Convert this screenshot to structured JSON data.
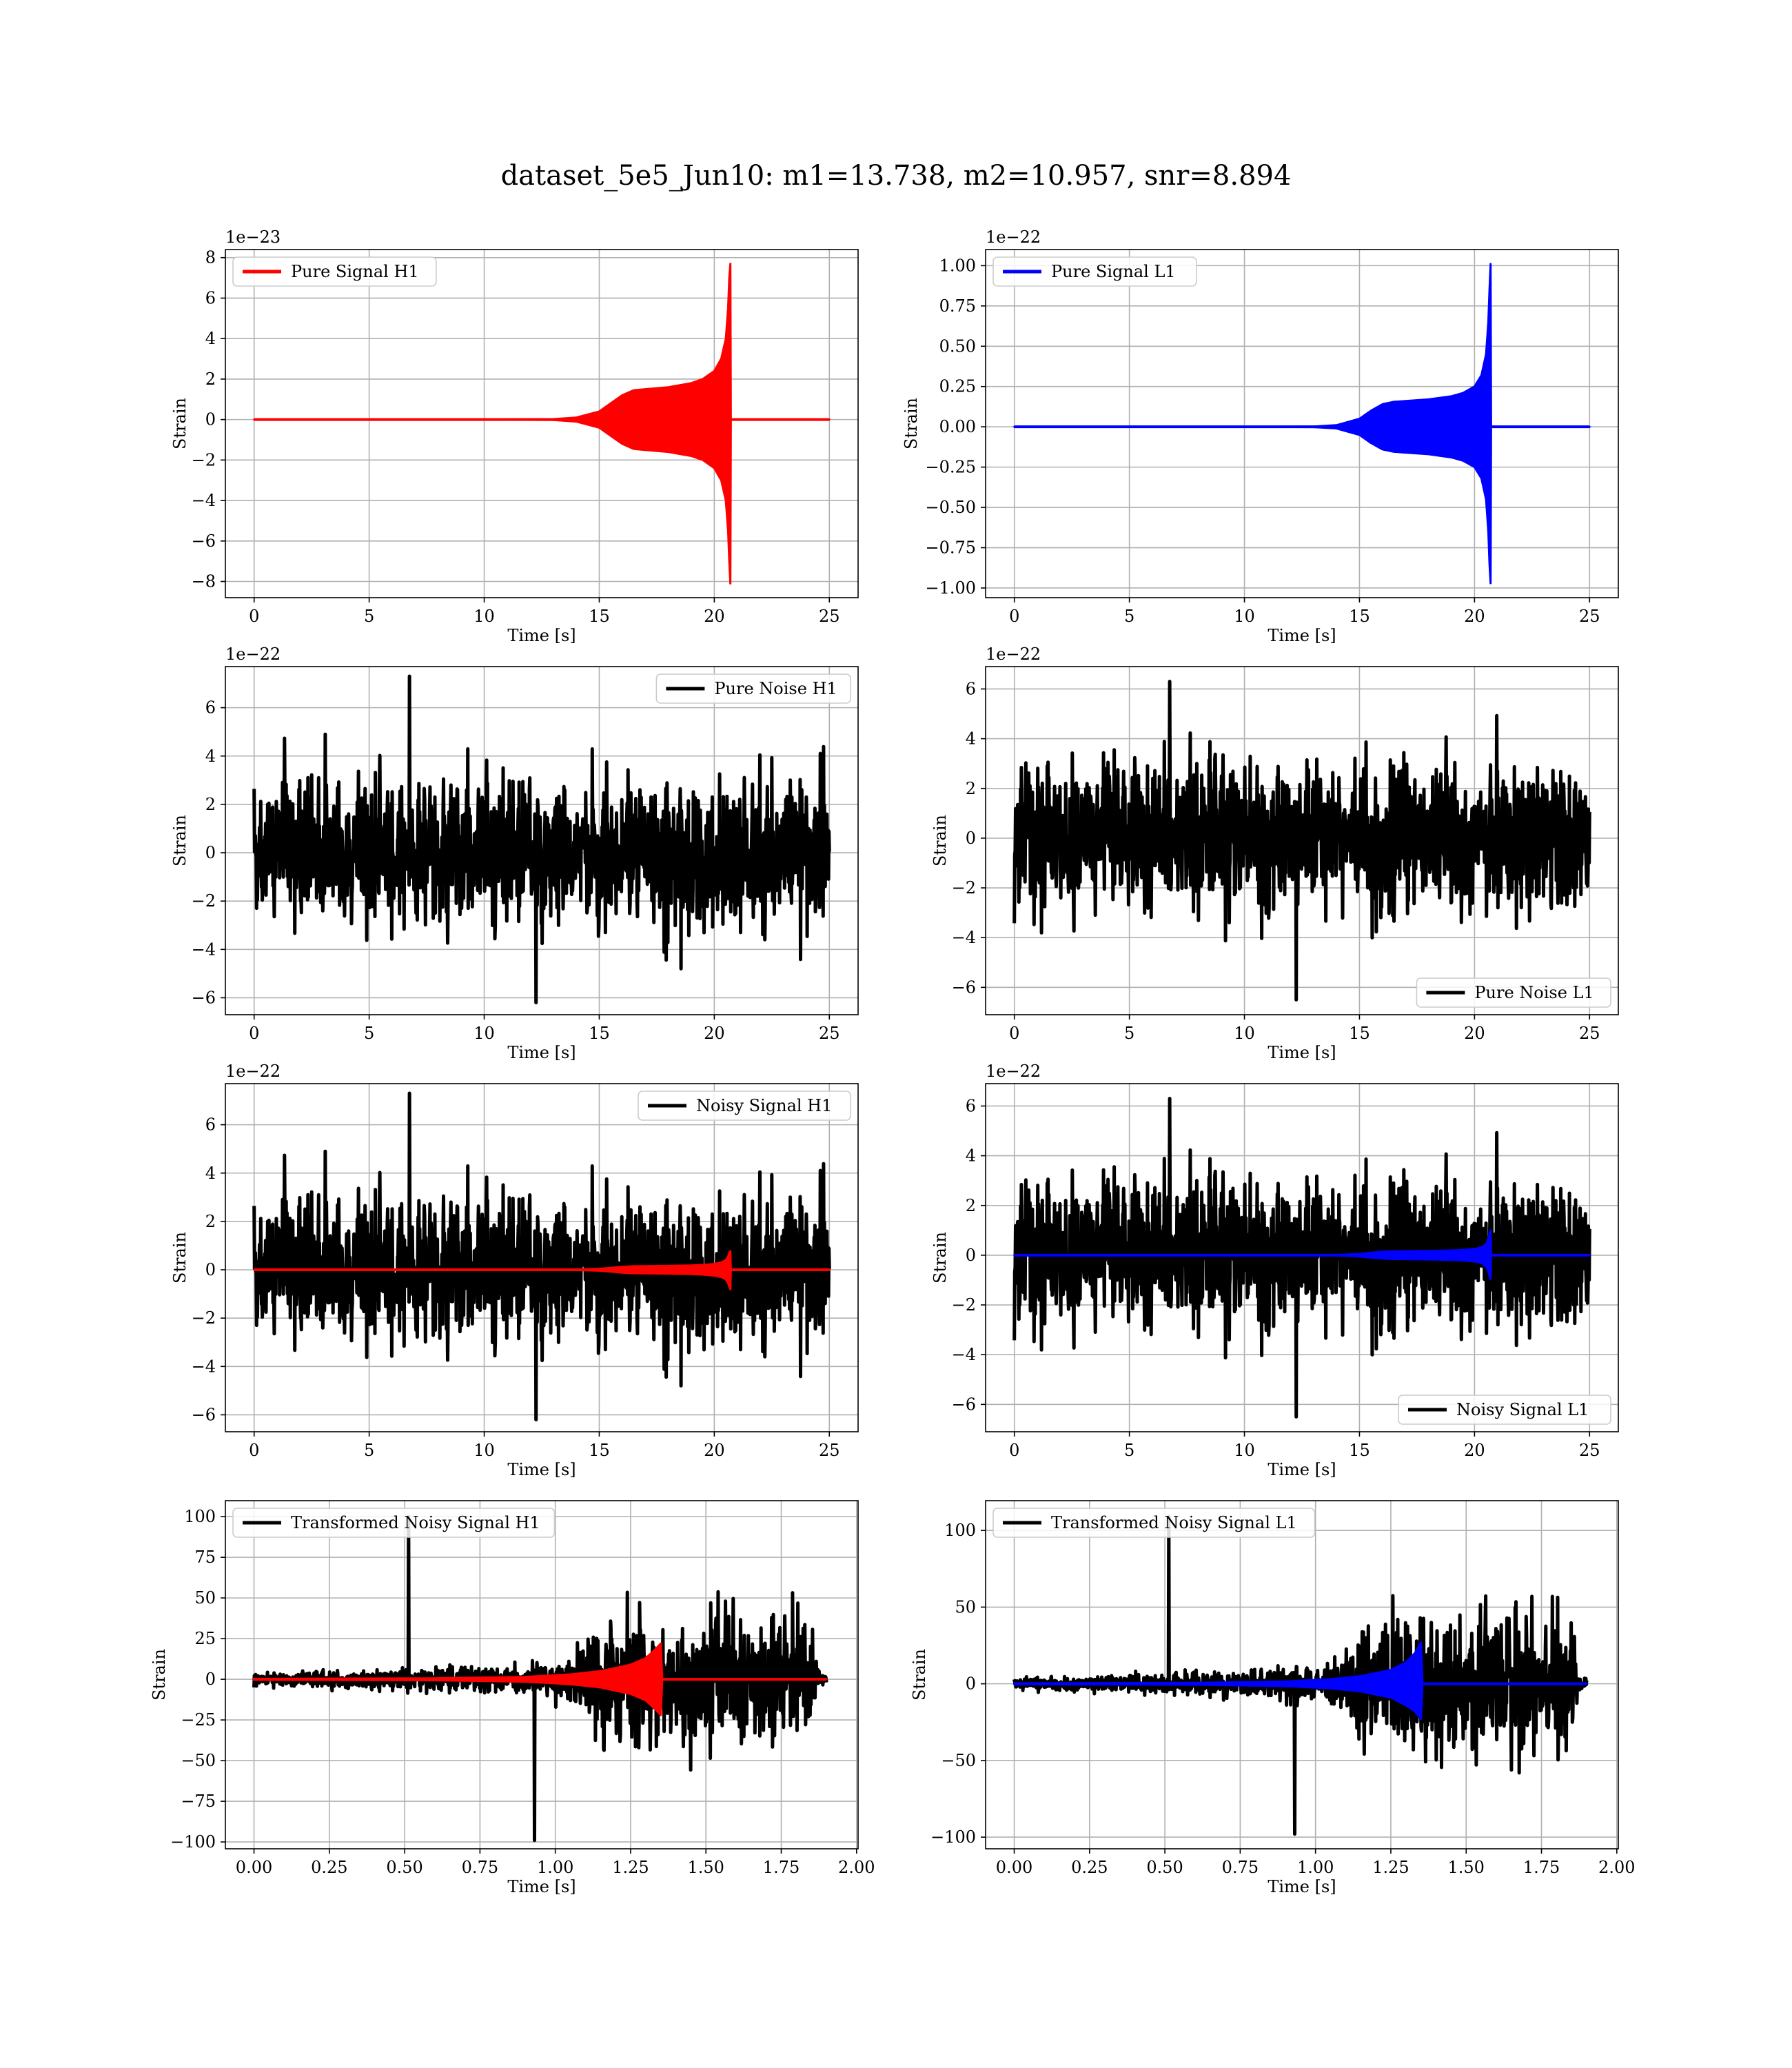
{
  "figure": {
    "suptitle": "dataset_5e5_Jun10: m1=13.738, m2=10.957, snr=8.894"
  },
  "colors": {
    "h1_signal": "#ff0000",
    "l1_signal": "#0000ff",
    "noise": "#000000",
    "grid": "#b0b0b0",
    "background": "#ffffff"
  },
  "chart_data": [
    {
      "id": "pure-signal-h1",
      "type": "line",
      "xlabel": "Time [s]",
      "ylabel": "Strain",
      "offset_text": "1e−23",
      "xlim": [
        -1.25,
        26.25
      ],
      "ylim": [
        -8.8,
        8.4
      ],
      "xticks": [
        0,
        5,
        10,
        15,
        20,
        25
      ],
      "xtick_labels": [
        "0",
        "5",
        "10",
        "15",
        "20",
        "25"
      ],
      "yticks": [
        -8,
        -6,
        -4,
        -2,
        0,
        2,
        4,
        6,
        8
      ],
      "ytick_labels": [
        "−8",
        "−6",
        "−4",
        "−2",
        "0",
        "2",
        "4",
        "6",
        "8"
      ],
      "grid": true,
      "legend_position": "upper left",
      "series": [
        {
          "name": "Pure Signal H1",
          "kind": "envelope",
          "color": "#ff0000",
          "x": [
            0,
            10,
            13,
            14,
            15,
            15.5,
            16,
            16.5,
            17,
            18,
            19,
            19.5,
            20,
            20.3,
            20.5,
            20.6,
            20.65,
            20.7,
            20.72,
            21,
            25
          ],
          "upper": [
            0,
            0,
            0.02,
            0.1,
            0.4,
            0.8,
            1.2,
            1.45,
            1.5,
            1.6,
            1.8,
            2.0,
            2.4,
            3.0,
            4.0,
            5.5,
            7.0,
            7.7,
            0,
            0,
            0
          ],
          "lower": [
            0,
            0,
            -0.02,
            -0.1,
            -0.4,
            -0.8,
            -1.2,
            -1.45,
            -1.5,
            -1.6,
            -1.8,
            -2.0,
            -2.4,
            -3.0,
            -4.0,
            -5.5,
            -7.0,
            -8.1,
            0,
            0,
            0
          ]
        }
      ]
    },
    {
      "id": "pure-signal-l1",
      "type": "line",
      "xlabel": "Time [s]",
      "ylabel": "Strain",
      "offset_text": "1e−22",
      "xlim": [
        -1.25,
        26.25
      ],
      "ylim": [
        -1.06,
        1.1
      ],
      "xticks": [
        0,
        5,
        10,
        15,
        20,
        25
      ],
      "xtick_labels": [
        "0",
        "5",
        "10",
        "15",
        "20",
        "25"
      ],
      "yticks": [
        -1.0,
        -0.75,
        -0.5,
        -0.25,
        0.0,
        0.25,
        0.5,
        0.75,
        1.0
      ],
      "ytick_labels": [
        "−1.00",
        "−0.75",
        "−0.50",
        "−0.25",
        "0.00",
        "0.25",
        "0.50",
        "0.75",
        "1.00"
      ],
      "grid": true,
      "legend_position": "upper left",
      "series": [
        {
          "name": "Pure Signal L1",
          "kind": "envelope",
          "color": "#0000ff",
          "x": [
            0,
            10,
            13,
            14,
            15,
            15.5,
            16,
            16.5,
            17,
            18,
            19,
            19.5,
            20,
            20.3,
            20.5,
            20.6,
            20.65,
            20.7,
            20.72,
            21,
            25
          ],
          "upper": [
            0,
            0,
            0.002,
            0.01,
            0.05,
            0.1,
            0.14,
            0.155,
            0.16,
            0.17,
            0.19,
            0.21,
            0.25,
            0.32,
            0.45,
            0.65,
            0.85,
            1.01,
            0,
            0,
            0
          ],
          "lower": [
            0,
            0,
            -0.002,
            -0.01,
            -0.05,
            -0.1,
            -0.14,
            -0.155,
            -0.16,
            -0.17,
            -0.19,
            -0.21,
            -0.25,
            -0.32,
            -0.45,
            -0.65,
            -0.85,
            -0.97,
            0,
            0,
            0
          ]
        }
      ]
    },
    {
      "id": "pure-noise-h1",
      "type": "line",
      "xlabel": "Time [s]",
      "ylabel": "Strain",
      "offset_text": "1e−22",
      "xlim": [
        -1.25,
        26.25
      ],
      "ylim": [
        -6.7,
        7.7
      ],
      "xticks": [
        0,
        5,
        10,
        15,
        20,
        25
      ],
      "xtick_labels": [
        "0",
        "5",
        "10",
        "15",
        "20",
        "25"
      ],
      "yticks": [
        -6,
        -4,
        -2,
        0,
        2,
        4,
        6
      ],
      "ytick_labels": [
        "−6",
        "−4",
        "−2",
        "0",
        "2",
        "4",
        "6"
      ],
      "grid": true,
      "legend_position": "upper right",
      "series": [
        {
          "name": "Pure Noise H1",
          "kind": "noise",
          "color": "#000000",
          "x_range": [
            0,
            25
          ],
          "std": 1.4,
          "max": 7.3,
          "min": -6.2,
          "seed": 11
        }
      ]
    },
    {
      "id": "pure-noise-l1",
      "type": "line",
      "xlabel": "Time [s]",
      "ylabel": "Strain",
      "offset_text": "1e−22",
      "xlim": [
        -1.25,
        26.25
      ],
      "ylim": [
        -7.1,
        6.9
      ],
      "xticks": [
        0,
        5,
        10,
        15,
        20,
        25
      ],
      "xtick_labels": [
        "0",
        "5",
        "10",
        "15",
        "20",
        "25"
      ],
      "yticks": [
        -6,
        -4,
        -2,
        0,
        2,
        4,
        6
      ],
      "ytick_labels": [
        "−6",
        "−4",
        "−2",
        "0",
        "2",
        "4",
        "6"
      ],
      "grid": true,
      "legend_position": "lower right",
      "series": [
        {
          "name": "Pure Noise L1",
          "kind": "noise",
          "color": "#000000",
          "x_range": [
            0,
            25
          ],
          "std": 1.4,
          "max": 6.3,
          "min": -6.5,
          "seed": 23
        }
      ]
    },
    {
      "id": "noisy-signal-h1",
      "type": "line",
      "xlabel": "Time [s]",
      "ylabel": "Strain",
      "offset_text": "1e−22",
      "xlim": [
        -1.25,
        26.25
      ],
      "ylim": [
        -6.7,
        7.7
      ],
      "xticks": [
        0,
        5,
        10,
        15,
        20,
        25
      ],
      "xtick_labels": [
        "0",
        "5",
        "10",
        "15",
        "20",
        "25"
      ],
      "yticks": [
        -6,
        -4,
        -2,
        0,
        2,
        4,
        6
      ],
      "ytick_labels": [
        "−6",
        "−4",
        "−2",
        "0",
        "2",
        "4",
        "6"
      ],
      "grid": true,
      "legend_position": "upper right",
      "series": [
        {
          "name": "Noisy Signal H1",
          "kind": "noise",
          "color": "#000000",
          "x_range": [
            0,
            25
          ],
          "std": 1.4,
          "max": 7.3,
          "min": -6.2,
          "seed": 11
        },
        {
          "kind": "envelope",
          "color": "#ff0000",
          "x": [
            0,
            10,
            13,
            14,
            15,
            15.5,
            16,
            16.5,
            17,
            18,
            19,
            19.5,
            20,
            20.3,
            20.5,
            20.6,
            20.65,
            20.7,
            20.72,
            21,
            25
          ],
          "upper": [
            0,
            0,
            0.002,
            0.01,
            0.04,
            0.08,
            0.12,
            0.145,
            0.15,
            0.16,
            0.18,
            0.2,
            0.24,
            0.3,
            0.4,
            0.55,
            0.7,
            0.77,
            0,
            0,
            0
          ],
          "lower": [
            0,
            0,
            -0.002,
            -0.01,
            -0.04,
            -0.08,
            -0.12,
            -0.145,
            -0.15,
            -0.16,
            -0.18,
            -0.2,
            -0.24,
            -0.3,
            -0.4,
            -0.55,
            -0.7,
            -0.81,
            0,
            0,
            0
          ]
        }
      ]
    },
    {
      "id": "noisy-signal-l1",
      "type": "line",
      "xlabel": "Time [s]",
      "ylabel": "Strain",
      "offset_text": "1e−22",
      "xlim": [
        -1.25,
        26.25
      ],
      "ylim": [
        -7.1,
        6.9
      ],
      "xticks": [
        0,
        5,
        10,
        15,
        20,
        25
      ],
      "xtick_labels": [
        "0",
        "5",
        "10",
        "15",
        "20",
        "25"
      ],
      "yticks": [
        -6,
        -4,
        -2,
        0,
        2,
        4,
        6
      ],
      "ytick_labels": [
        "−6",
        "−4",
        "−2",
        "0",
        "2",
        "4",
        "6"
      ],
      "grid": true,
      "legend_position": "lower right",
      "series": [
        {
          "name": "Noisy Signal L1",
          "kind": "noise",
          "color": "#000000",
          "x_range": [
            0,
            25
          ],
          "std": 1.4,
          "max": 6.3,
          "min": -6.5,
          "seed": 23
        },
        {
          "kind": "envelope",
          "color": "#0000ff",
          "x": [
            0,
            10,
            13,
            14,
            15,
            15.5,
            16,
            16.5,
            17,
            18,
            19,
            19.5,
            20,
            20.3,
            20.5,
            20.6,
            20.65,
            20.7,
            20.72,
            21,
            25
          ],
          "upper": [
            0,
            0,
            0.002,
            0.01,
            0.05,
            0.1,
            0.14,
            0.155,
            0.16,
            0.17,
            0.19,
            0.21,
            0.25,
            0.32,
            0.45,
            0.65,
            0.85,
            1.01,
            0,
            0,
            0
          ],
          "lower": [
            0,
            0,
            -0.002,
            -0.01,
            -0.05,
            -0.1,
            -0.14,
            -0.155,
            -0.16,
            -0.17,
            -0.19,
            -0.21,
            -0.25,
            -0.32,
            -0.45,
            -0.65,
            -0.85,
            -0.97,
            0,
            0,
            0
          ]
        }
      ]
    },
    {
      "id": "transformed-noisy-signal-h1",
      "type": "line",
      "xlabel": "Time [s]",
      "ylabel": "Strain",
      "offset_text": "",
      "xlim": [
        -0.095,
        2.005
      ],
      "ylim": [
        -104.2,
        109.8
      ],
      "xticks": [
        0.0,
        0.25,
        0.5,
        0.75,
        1.0,
        1.25,
        1.5,
        1.75,
        2.0
      ],
      "xtick_labels": [
        "0.00",
        "0.25",
        "0.50",
        "0.75",
        "1.00",
        "1.25",
        "1.50",
        "1.75",
        "2.00"
      ],
      "yticks": [
        -100,
        -75,
        -50,
        -25,
        0,
        25,
        50,
        75,
        100
      ],
      "ytick_labels": [
        "−100",
        "−75",
        "−50",
        "−25",
        "0",
        "25",
        "50",
        "75",
        "100"
      ],
      "grid": true,
      "legend_position": "upper left",
      "series": [
        {
          "name": "Transformed Noisy Signal H1",
          "kind": "shaped-noise",
          "color": "#000000",
          "x_range": [
            0,
            1.9
          ],
          "seed": 37,
          "profile_x": [
            0,
            0.3,
            0.6,
            0.9,
            1.05,
            1.1,
            1.15,
            1.5,
            1.85,
            1.87,
            1.9
          ],
          "profile_amp": [
            4,
            6,
            8,
            11,
            15,
            28,
            42,
            45,
            42,
            5,
            5
          ],
          "max": 100,
          "min": -99
        },
        {
          "kind": "envelope",
          "color": "#ff0000",
          "x": [
            0,
            0.6,
            0.9,
            1.05,
            1.15,
            1.25,
            1.3,
            1.33,
            1.35,
            1.355,
            1.9
          ],
          "upper": [
            0.3,
            0.6,
            1.5,
            3,
            5,
            9,
            13,
            18,
            22,
            0,
            0
          ],
          "lower": [
            -0.3,
            -0.6,
            -1.5,
            -3,
            -5,
            -9,
            -13,
            -18,
            -22,
            0,
            0
          ]
        }
      ]
    },
    {
      "id": "transformed-noisy-signal-l1",
      "type": "line",
      "xlabel": "Time [s]",
      "ylabel": "Strain",
      "offset_text": "",
      "xlim": [
        -0.095,
        2.005
      ],
      "ylim": [
        -107.6,
        119.4
      ],
      "xticks": [
        0.0,
        0.25,
        0.5,
        0.75,
        1.0,
        1.25,
        1.5,
        1.75,
        2.0
      ],
      "xtick_labels": [
        "0.00",
        "0.25",
        "0.50",
        "0.75",
        "1.00",
        "1.25",
        "1.50",
        "1.75",
        "2.00"
      ],
      "yticks": [
        -100,
        -50,
        0,
        50,
        100
      ],
      "ytick_labels": [
        "−100",
        "−50",
        "0",
        "50",
        "100"
      ],
      "grid": true,
      "legend_position": "upper left",
      "series": [
        {
          "name": "Transformed Noisy Signal L1",
          "kind": "shaped-noise",
          "color": "#000000",
          "x_range": [
            0,
            1.9
          ],
          "seed": 53,
          "profile_x": [
            0,
            0.3,
            0.6,
            0.9,
            1.05,
            1.1,
            1.15,
            1.5,
            1.85,
            1.87,
            1.9
          ],
          "profile_amp": [
            4,
            6,
            8,
            11,
            15,
            30,
            45,
            48,
            45,
            5,
            5
          ],
          "max": 109,
          "min": -98
        },
        {
          "kind": "envelope",
          "color": "#0000ff",
          "x": [
            0,
            0.6,
            0.9,
            1.05,
            1.15,
            1.25,
            1.3,
            1.33,
            1.35,
            1.355,
            1.9
          ],
          "upper": [
            0.3,
            0.6,
            1.5,
            3,
            5,
            9,
            14,
            20,
            27,
            0,
            0
          ],
          "lower": [
            -0.3,
            -0.6,
            -1.5,
            -3,
            -5,
            -9,
            -14,
            -18,
            -23,
            0,
            0
          ]
        }
      ]
    }
  ]
}
